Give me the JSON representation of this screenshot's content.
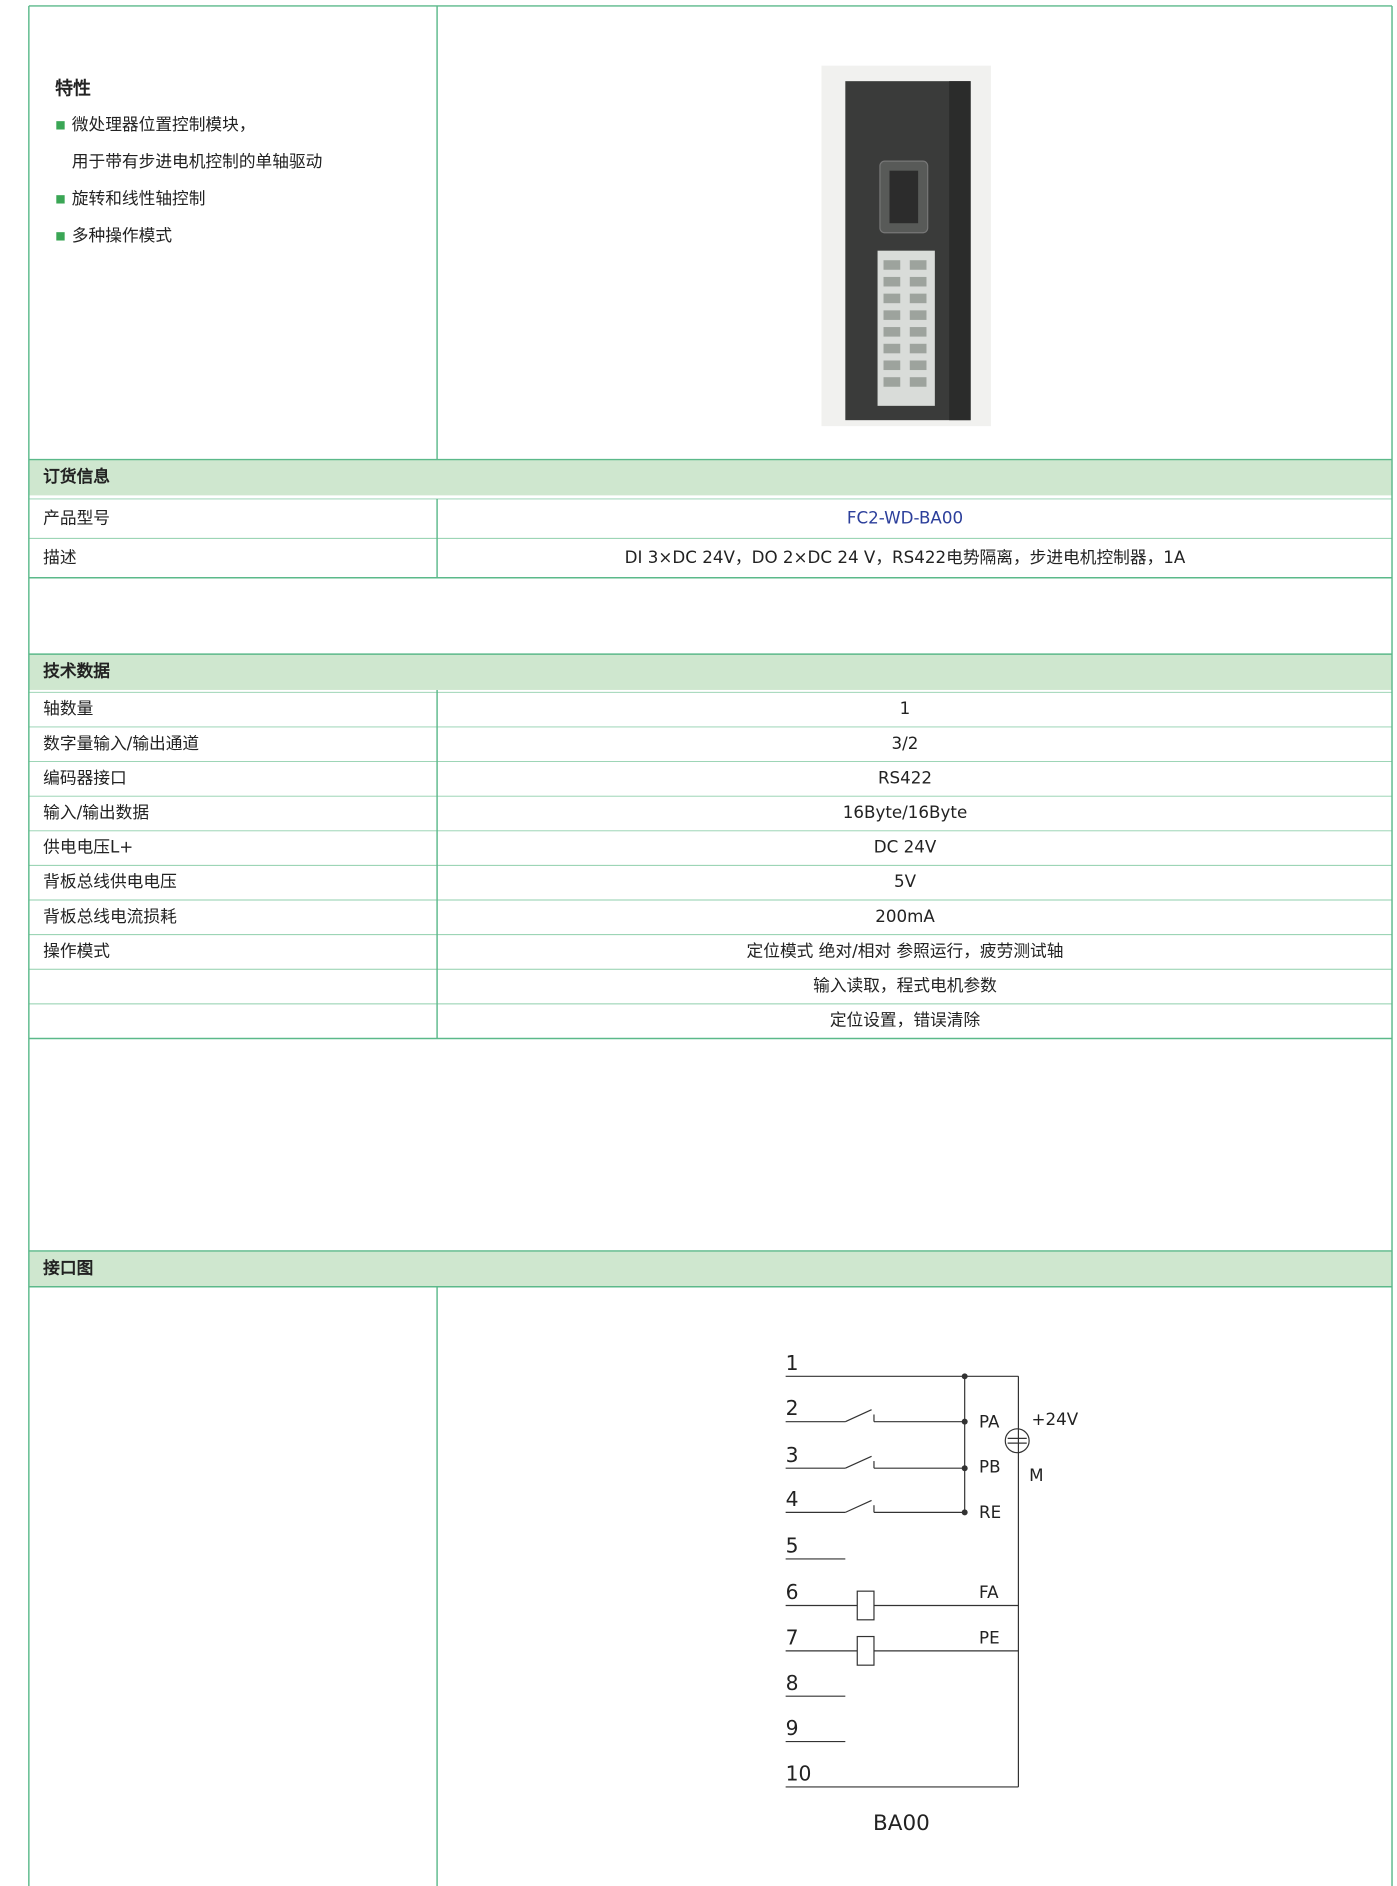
{
  "features": {
    "title": "特性",
    "items": [
      [
        "微处理器位置控制模块，",
        "用于带有步进电机控制的单轴驱动"
      ],
      [
        "旋转和线性轴控制"
      ],
      [
        "多种操作模式"
      ]
    ]
  },
  "order_info": {
    "title": "订货信息",
    "rows": [
      [
        "产品型号",
        "FC2-WD-BA00"
      ],
      [
        "描述",
        "DI 3×DC 24V，DO 2×DC 24 V，RS422电势隔离，步进电机控制器，1A"
      ]
    ]
  },
  "technical_data": {
    "title": "技术数据",
    "rows": [
      [
        "轴数量",
        "1"
      ],
      [
        "数字量输入/输出通道",
        "3/2"
      ],
      [
        "编码器接口",
        "RS422"
      ],
      [
        "输入/输出数据",
        "16Byte/16Byte"
      ],
      [
        "供电电压L+",
        "DC  24V"
      ],
      [
        "背板总线供电电压",
        "5V"
      ],
      [
        "背板总线电流损耗",
        "200mA"
      ],
      [
        "操作模式",
        "定位模式 绝对/相对 参照运行，疲劳测试轴"
      ],
      [
        null,
        "输入读取，程式电机参数"
      ],
      [
        null,
        "定位设置，错误清除"
      ]
    ]
  },
  "interface_diagram": {
    "title": "接口图",
    "terminals": [
      "1",
      "2",
      "3",
      "4",
      "5",
      "6",
      "7",
      "8",
      "9",
      "10"
    ],
    "signals": [
      "PA",
      "PB",
      "RE",
      "FA",
      "PE"
    ],
    "supply": "+24V",
    "motor": "M",
    "model": "BA00"
  }
}
